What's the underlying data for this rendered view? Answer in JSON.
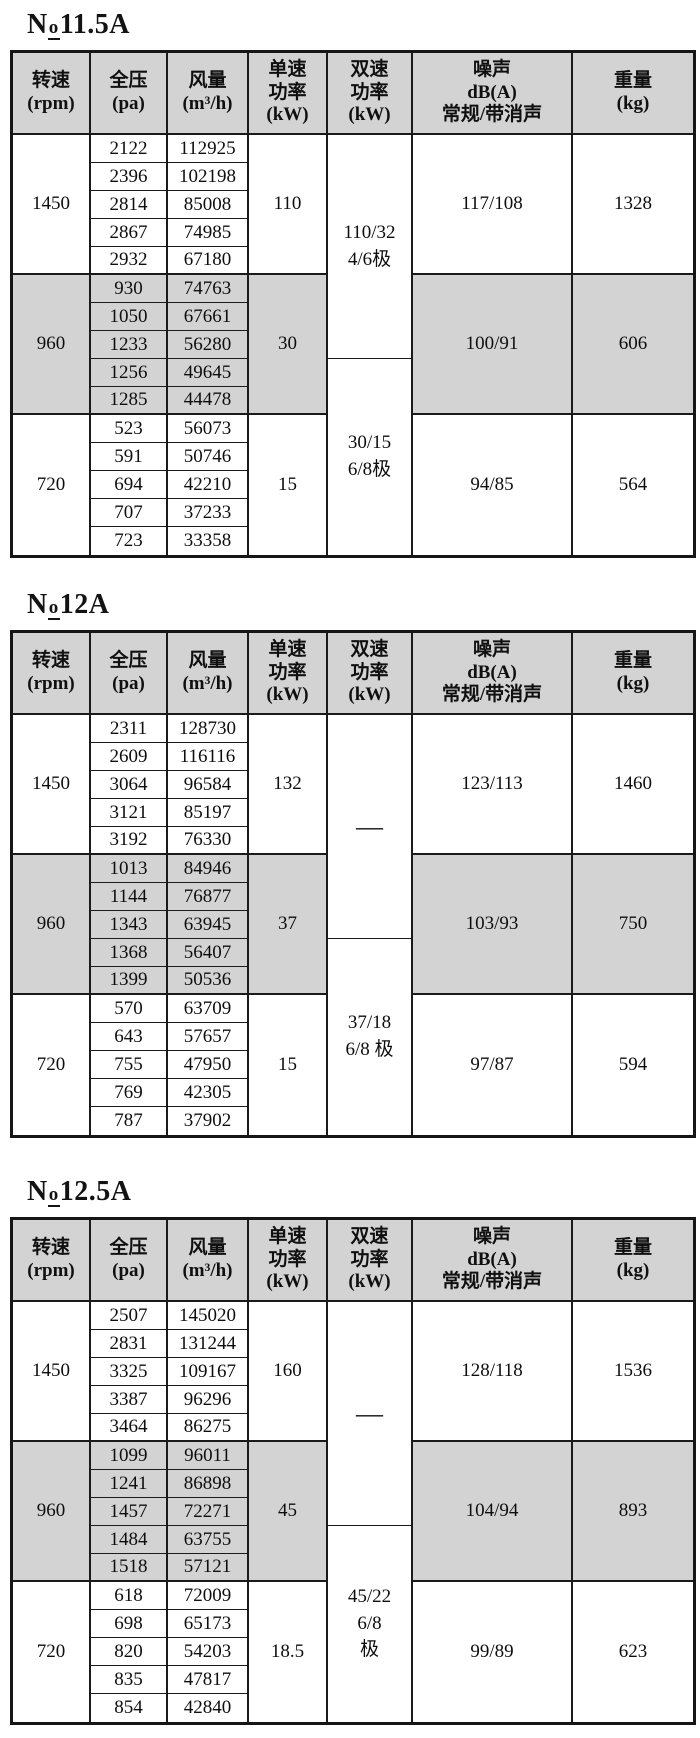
{
  "colors": {
    "shaded_band": "#d3d3d3",
    "header_bg": "#d3d3d3",
    "border": "#1a1a1a",
    "page_bg": "#ffffff"
  },
  "header": {
    "columns": [
      {
        "id": "speed",
        "lines": [
          "转速",
          "(rpm)"
        ]
      },
      {
        "id": "pressure",
        "lines": [
          "全压",
          "(pa)"
        ]
      },
      {
        "id": "flow",
        "lines": [
          "风量",
          "(m³/h)"
        ]
      },
      {
        "id": "single-power",
        "lines": [
          "单速",
          "功率",
          "(kW)"
        ]
      },
      {
        "id": "dual-power",
        "lines": [
          "双速",
          "功率",
          "(kW)"
        ]
      },
      {
        "id": "noise",
        "lines": [
          "噪声",
          "dB(A)",
          "常规/带消声"
        ]
      },
      {
        "id": "weight",
        "lines": [
          "重量",
          "(kg)"
        ]
      }
    ]
  },
  "tables": [
    {
      "model": "No11.5A",
      "title_n": "N",
      "title_o": "o",
      "title_rest": "11.5A",
      "groups": [
        {
          "rpm": "1450",
          "shaded": false,
          "rows": [
            [
              "2122",
              "112925"
            ],
            [
              "2396",
              "102198"
            ],
            [
              "2814",
              "85008"
            ],
            [
              "2867",
              "74985"
            ],
            [
              "2932",
              "67180"
            ]
          ],
          "single_power": "110",
          "noise": "117/108",
          "weight": "1328"
        },
        {
          "rpm": "960",
          "shaded": true,
          "rows": [
            [
              "930",
              "74763"
            ],
            [
              "1050",
              "67661"
            ],
            [
              "1233",
              "56280"
            ],
            [
              "1256",
              "49645"
            ],
            [
              "1285",
              "44478"
            ]
          ],
          "single_power": "30",
          "noise": "100/91",
          "weight": "606"
        },
        {
          "rpm": "720",
          "shaded": false,
          "rows": [
            [
              "523",
              "56073"
            ],
            [
              "591",
              "50746"
            ],
            [
              "694",
              "42210"
            ],
            [
              "707",
              "37233"
            ],
            [
              "723",
              "33358"
            ]
          ],
          "single_power": "15",
          "noise": "94/85",
          "weight": "564"
        }
      ],
      "dual_power_cells": [
        {
          "lines": [
            "110/32",
            "4/6极"
          ]
        },
        {
          "lines": [
            "30/15",
            "6/8极"
          ]
        }
      ]
    },
    {
      "model": "No12A",
      "title_n": "N",
      "title_o": "o",
      "title_rest": "12A",
      "groups": [
        {
          "rpm": "1450",
          "shaded": false,
          "rows": [
            [
              "2311",
              "128730"
            ],
            [
              "2609",
              "116116"
            ],
            [
              "3064",
              "96584"
            ],
            [
              "3121",
              "85197"
            ],
            [
              "3192",
              "76330"
            ]
          ],
          "single_power": "132",
          "noise": "123/113",
          "weight": "1460"
        },
        {
          "rpm": "960",
          "shaded": true,
          "rows": [
            [
              "1013",
              "84946"
            ],
            [
              "1144",
              "76877"
            ],
            [
              "1343",
              "63945"
            ],
            [
              "1368",
              "56407"
            ],
            [
              "1399",
              "50536"
            ]
          ],
          "single_power": "37",
          "noise": "103/93",
          "weight": "750"
        },
        {
          "rpm": "720",
          "shaded": false,
          "rows": [
            [
              "570",
              "63709"
            ],
            [
              "643",
              "57657"
            ],
            [
              "755",
              "47950"
            ],
            [
              "769",
              "42305"
            ],
            [
              "787",
              "37902"
            ]
          ],
          "single_power": "15",
          "noise": "97/87",
          "weight": "594"
        }
      ],
      "dual_power_cells": [
        {
          "lines": [
            "—"
          ]
        },
        {
          "lines": [
            "37/18",
            "6/8 极"
          ]
        }
      ]
    },
    {
      "model": "No12.5A",
      "title_n": "N",
      "title_o": "o",
      "title_rest": "12.5A",
      "groups": [
        {
          "rpm": "1450",
          "shaded": false,
          "rows": [
            [
              "2507",
              "145020"
            ],
            [
              "2831",
              "131244"
            ],
            [
              "3325",
              "109167"
            ],
            [
              "3387",
              "96296"
            ],
            [
              "3464",
              "86275"
            ]
          ],
          "single_power": "160",
          "noise": "128/118",
          "weight": "1536"
        },
        {
          "rpm": "960",
          "shaded": true,
          "rows": [
            [
              "1099",
              "96011"
            ],
            [
              "1241",
              "86898"
            ],
            [
              "1457",
              "72271"
            ],
            [
              "1484",
              "63755"
            ],
            [
              "1518",
              "57121"
            ]
          ],
          "single_power": "45",
          "noise": "104/94",
          "weight": "893"
        },
        {
          "rpm": "720",
          "shaded": false,
          "rows": [
            [
              "618",
              "72009"
            ],
            [
              "698",
              "65173"
            ],
            [
              "820",
              "54203"
            ],
            [
              "835",
              "47817"
            ],
            [
              "854",
              "42840"
            ]
          ],
          "single_power": "18.5",
          "noise": "99/89",
          "weight": "623"
        }
      ],
      "dual_power_cells": [
        {
          "lines": [
            "—"
          ]
        },
        {
          "lines": [
            "45/22",
            "6/8",
            "极"
          ]
        }
      ]
    }
  ]
}
